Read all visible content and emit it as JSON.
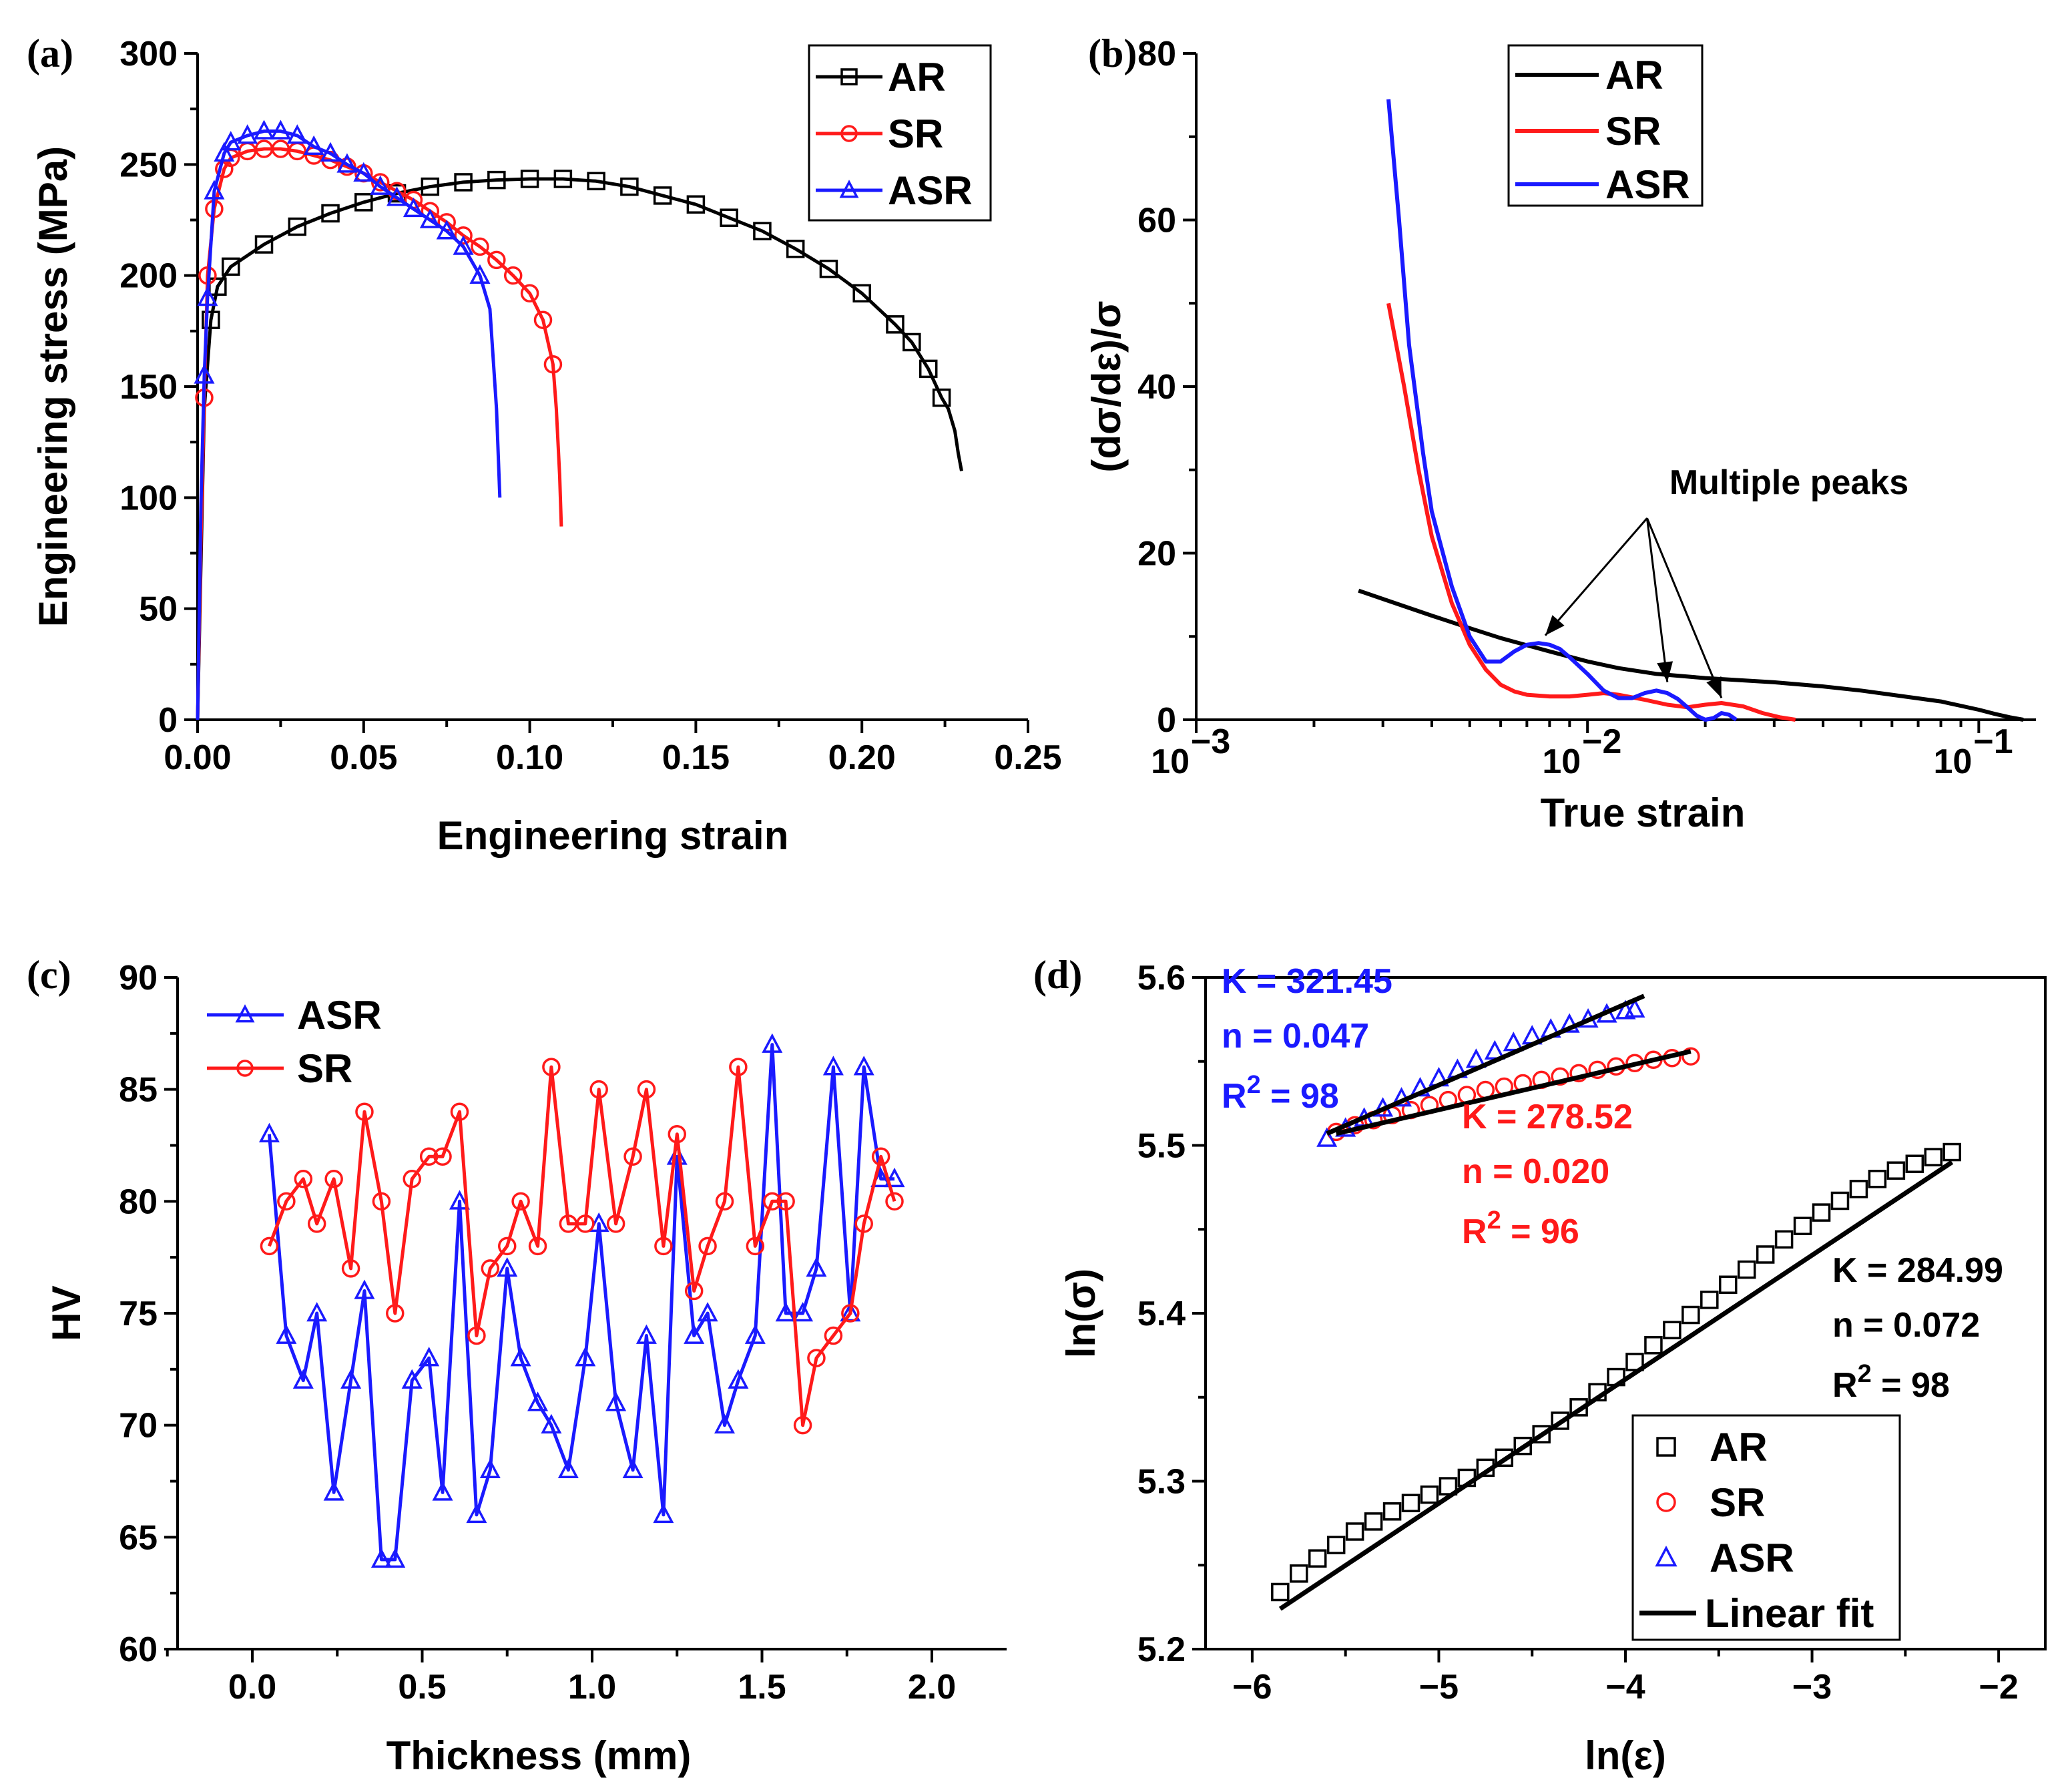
{
  "colors": {
    "AR": "#000000",
    "SR": "#ff1a1a",
    "ASR": "#1a1aff",
    "fit": "#000000"
  },
  "chart_data": [
    {
      "panel": "(a)",
      "type": "line",
      "xlabel": "Engineering strain",
      "ylabel": "Engineering stress (MPa)",
      "xlim": [
        0,
        0.25
      ],
      "ylim": [
        0,
        300
      ],
      "xticks": [
        "0.00",
        "0.05",
        "0.10",
        "0.15",
        "0.20",
        "0.25"
      ],
      "yticks": [
        "0",
        "50",
        "100",
        "150",
        "200",
        "250",
        "300"
      ],
      "legend": [
        "AR",
        "SR",
        "ASR"
      ],
      "series": [
        {
          "name": "AR",
          "marker": "square",
          "x": [
            0.0,
            0.002,
            0.004,
            0.006,
            0.01,
            0.02,
            0.03,
            0.04,
            0.05,
            0.06,
            0.07,
            0.08,
            0.09,
            0.1,
            0.11,
            0.12,
            0.13,
            0.14,
            0.15,
            0.16,
            0.17,
            0.18,
            0.19,
            0.2,
            0.21,
            0.215,
            0.22,
            0.224,
            0.226,
            0.228,
            0.229,
            0.23
          ],
          "y": [
            0,
            140,
            180,
            195,
            204,
            214,
            222,
            228,
            233,
            237,
            240,
            242,
            243,
            243.5,
            243.5,
            242.5,
            240,
            236,
            232,
            226,
            220,
            212,
            203,
            192,
            178,
            170,
            158,
            145,
            140,
            130,
            120,
            112
          ]
        },
        {
          "name": "SR",
          "marker": "circle",
          "x": [
            0.0,
            0.001,
            0.002,
            0.003,
            0.005,
            0.008,
            0.01,
            0.015,
            0.02,
            0.025,
            0.03,
            0.035,
            0.04,
            0.045,
            0.05,
            0.055,
            0.06,
            0.065,
            0.07,
            0.075,
            0.08,
            0.085,
            0.09,
            0.095,
            0.1,
            0.104,
            0.107,
            0.108,
            0.109,
            0.1095
          ],
          "y": [
            0,
            80,
            145,
            200,
            230,
            248,
            253,
            256,
            257,
            257,
            256,
            254,
            252,
            249,
            246,
            242,
            238,
            234,
            229,
            224,
            218,
            213,
            207,
            200,
            192,
            180,
            160,
            140,
            110,
            87
          ]
        },
        {
          "name": "ASR",
          "marker": "triangle",
          "x": [
            0.0,
            0.001,
            0.002,
            0.003,
            0.005,
            0.008,
            0.01,
            0.015,
            0.02,
            0.025,
            0.03,
            0.035,
            0.04,
            0.045,
            0.05,
            0.055,
            0.06,
            0.065,
            0.07,
            0.075,
            0.08,
            0.085,
            0.088,
            0.09,
            0.091
          ],
          "y": [
            0,
            97,
            155,
            190,
            238,
            255,
            260,
            263,
            265,
            265,
            263,
            258,
            255,
            250,
            246,
            240,
            235,
            230,
            225,
            220,
            213,
            200,
            185,
            140,
            100
          ]
        }
      ]
    },
    {
      "panel": "(b)",
      "type": "line",
      "xlabel": "True strain",
      "ylabel": "(dσ/dε)/σ",
      "xscale": "log",
      "xlim": [
        0.001,
        0.14
      ],
      "ylim": [
        0,
        80
      ],
      "xticks": [
        "10",
        "10",
        "10"
      ],
      "xtick_exponents": [
        "−3",
        "−2",
        "−1"
      ],
      "yticks": [
        "0",
        "20",
        "40",
        "60",
        "80"
      ],
      "legend": [
        "AR",
        "SR",
        "ASR"
      ],
      "annotation": "Multiple peaks",
      "series": [
        {
          "name": "AR",
          "x": [
            0.0026,
            0.003,
            0.004,
            0.005,
            0.006,
            0.008,
            0.01,
            0.012,
            0.015,
            0.02,
            0.03,
            0.04,
            0.05,
            0.06,
            0.08,
            0.1,
            0.11,
            0.12,
            0.13
          ],
          "y": [
            15.5,
            14.5,
            12.5,
            11,
            9.8,
            8.2,
            7,
            6.2,
            5.5,
            5,
            4.5,
            4,
            3.5,
            3,
            2.2,
            1.2,
            0.7,
            0.3,
            0
          ]
        },
        {
          "name": "SR",
          "x": [
            0.0031,
            0.0034,
            0.0037,
            0.004,
            0.0045,
            0.005,
            0.0055,
            0.006,
            0.0065,
            0.007,
            0.008,
            0.009,
            0.01,
            0.011,
            0.012,
            0.014,
            0.016,
            0.018,
            0.02,
            0.022,
            0.025,
            0.028,
            0.031,
            0.034
          ],
          "y": [
            50,
            40,
            30,
            22,
            14,
            9,
            6,
            4.2,
            3.4,
            3,
            2.8,
            2.8,
            3,
            3.2,
            3,
            2.4,
            1.8,
            1.5,
            1.8,
            2,
            1.6,
            0.8,
            0.3,
            0
          ]
        },
        {
          "name": "ASR",
          "x": [
            0.0031,
            0.0033,
            0.0035,
            0.0038,
            0.004,
            0.0045,
            0.005,
            0.0055,
            0.006,
            0.0065,
            0.007,
            0.0075,
            0.008,
            0.0085,
            0.009,
            0.01,
            0.011,
            0.012,
            0.013,
            0.014,
            0.015,
            0.016,
            0.017,
            0.018,
            0.019,
            0.02,
            0.021,
            0.022,
            0.023,
            0.024
          ],
          "y": [
            74.5,
            60,
            45,
            32,
            25,
            16,
            10,
            7,
            7,
            8.2,
            9,
            9.2,
            9,
            8.5,
            7.5,
            5.5,
            3.5,
            2.6,
            2.6,
            3.2,
            3.5,
            3.2,
            2.5,
            1.5,
            0.5,
            0,
            0.2,
            0.8,
            0.6,
            0
          ]
        }
      ],
      "peak_markers": [
        {
          "x": 0.0078,
          "y": 9
        },
        {
          "x": 0.016,
          "y": 3.4
        },
        {
          "x": 0.022,
          "y": 1.5
        }
      ]
    },
    {
      "panel": "(c)",
      "type": "line",
      "xlabel": "Thickness (mm)",
      "ylabel": "HV",
      "xlim": [
        -0.22,
        2.22
      ],
      "ylim": [
        60,
        90
      ],
      "xticks": [
        "0.0",
        "0.5",
        "1.0",
        "1.5",
        "2.0"
      ],
      "yticks": [
        "60",
        "65",
        "70",
        "75",
        "80",
        "85",
        "90"
      ],
      "legend": [
        "ASR",
        "SR"
      ],
      "series": [
        {
          "name": "ASR",
          "marker": "triangle",
          "x": [
            0.05,
            0.1,
            0.15,
            0.19,
            0.24,
            0.29,
            0.33,
            0.38,
            0.42,
            0.47,
            0.52,
            0.56,
            0.61,
            0.66,
            0.7,
            0.75,
            0.79,
            0.84,
            0.88,
            0.93,
            0.98,
            1.02,
            1.07,
            1.12,
            1.16,
            1.21,
            1.25,
            1.3,
            1.34,
            1.39,
            1.43,
            1.48,
            1.53,
            1.57,
            1.62,
            1.66,
            1.71,
            1.76,
            1.8,
            1.85,
            1.89
          ],
          "y": [
            83,
            74,
            72,
            75,
            67,
            72,
            76,
            64,
            64,
            72,
            73,
            67,
            80,
            66,
            68,
            77,
            73,
            71,
            70,
            68,
            73,
            79,
            71,
            68,
            74,
            66,
            82,
            74,
            75,
            70,
            72,
            74,
            87,
            75,
            75,
            77,
            86,
            75,
            86,
            81,
            81
          ]
        },
        {
          "name": "SR",
          "marker": "circle",
          "x": [
            0.05,
            0.1,
            0.15,
            0.19,
            0.24,
            0.29,
            0.33,
            0.38,
            0.42,
            0.47,
            0.52,
            0.56,
            0.61,
            0.66,
            0.7,
            0.75,
            0.79,
            0.84,
            0.88,
            0.93,
            0.98,
            1.02,
            1.07,
            1.12,
            1.16,
            1.21,
            1.25,
            1.3,
            1.34,
            1.39,
            1.43,
            1.48,
            1.53,
            1.57,
            1.62,
            1.66,
            1.71,
            1.76,
            1.8,
            1.85,
            1.89
          ],
          "y": [
            78,
            80,
            81,
            79,
            81,
            77,
            84,
            80,
            75,
            81,
            82,
            82,
            84,
            74,
            77,
            78,
            80,
            78,
            86,
            79,
            79,
            85,
            79,
            82,
            85,
            78,
            83,
            76,
            78,
            80,
            86,
            78,
            80,
            80,
            70,
            73,
            74,
            75,
            79,
            82,
            80
          ]
        }
      ]
    },
    {
      "panel": "(d)",
      "type": "scatter",
      "xlabel": "ln(ε)",
      "ylabel": "ln(σ)",
      "xlim": [
        -6.25,
        -1.75
      ],
      "ylim": [
        5.2,
        5.6
      ],
      "xticks": [
        "−6",
        "−5",
        "−4",
        "−3",
        "−2"
      ],
      "yticks": [
        "5.2",
        "5.3",
        "5.4",
        "5.5",
        "5.6"
      ],
      "legend": [
        "AR",
        "SR",
        "ASR",
        "Linear fit"
      ],
      "annotations": [
        {
          "series": "ASR",
          "K": "K = 321.45",
          "n": "n = 0.047",
          "R2_base": "R",
          "R2_exp": "2",
          "R2_val": " = 98"
        },
        {
          "series": "SR",
          "K": "K = 278.52",
          "n": "n = 0.020",
          "R2_base": "R",
          "R2_exp": "2",
          "R2_val": " = 96"
        },
        {
          "series": "AR",
          "K": "K = 284.99",
          "n": "n = 0.072",
          "R2_base": "R",
          "R2_exp": "2",
          "R2_val": " = 98"
        }
      ],
      "series": [
        {
          "name": "AR",
          "marker": "square",
          "x": [
            -5.85,
            -5.75,
            -5.65,
            -5.55,
            -5.45,
            -5.35,
            -5.25,
            -5.15,
            -5.05,
            -4.95,
            -4.85,
            -4.75,
            -4.65,
            -4.55,
            -4.45,
            -4.35,
            -4.25,
            -4.15,
            -4.05,
            -3.95,
            -3.85,
            -3.75,
            -3.65,
            -3.55,
            -3.45,
            -3.35,
            -3.25,
            -3.15,
            -3.05,
            -2.95,
            -2.85,
            -2.75,
            -2.65,
            -2.55,
            -2.45,
            -2.35,
            -2.25
          ],
          "y": [
            5.234,
            5.245,
            5.254,
            5.262,
            5.27,
            5.276,
            5.282,
            5.287,
            5.292,
            5.297,
            5.302,
            5.308,
            5.314,
            5.321,
            5.328,
            5.336,
            5.344,
            5.353,
            5.362,
            5.371,
            5.381,
            5.39,
            5.399,
            5.408,
            5.417,
            5.426,
            5.435,
            5.444,
            5.452,
            5.46,
            5.467,
            5.474,
            5.48,
            5.485,
            5.489,
            5.493,
            5.496
          ]
        },
        {
          "name": "SR",
          "marker": "circle",
          "x": [
            -5.55,
            -5.45,
            -5.35,
            -5.25,
            -5.15,
            -5.05,
            -4.95,
            -4.85,
            -4.75,
            -4.65,
            -4.55,
            -4.45,
            -4.35,
            -4.25,
            -4.15,
            -4.05,
            -3.95,
            -3.85,
            -3.75,
            -3.65
          ],
          "y": [
            5.508,
            5.512,
            5.515,
            5.518,
            5.521,
            5.524,
            5.527,
            5.53,
            5.533,
            5.535,
            5.537,
            5.539,
            5.541,
            5.543,
            5.545,
            5.547,
            5.549,
            5.551,
            5.552,
            5.553
          ]
        },
        {
          "name": "ASR",
          "marker": "triangle",
          "x": [
            -5.6,
            -5.5,
            -5.4,
            -5.3,
            -5.2,
            -5.1,
            -5.0,
            -4.9,
            -4.8,
            -4.7,
            -4.6,
            -4.5,
            -4.4,
            -4.3,
            -4.2,
            -4.1,
            -4.0,
            -3.95
          ],
          "y": [
            5.504,
            5.51,
            5.516,
            5.522,
            5.528,
            5.534,
            5.54,
            5.545,
            5.551,
            5.556,
            5.561,
            5.565,
            5.569,
            5.572,
            5.575,
            5.578,
            5.58,
            5.581
          ]
        }
      ],
      "fits": [
        {
          "name": "AR fit",
          "x": [
            -5.85,
            -2.25
          ],
          "y": [
            5.224,
            5.49
          ]
        },
        {
          "name": "SR fit",
          "x": [
            -5.55,
            -3.65
          ],
          "y": [
            5.507,
            5.556
          ]
        },
        {
          "name": "ASR fit",
          "x": [
            -5.6,
            -3.9
          ],
          "y": [
            5.507,
            5.589
          ]
        }
      ]
    }
  ]
}
